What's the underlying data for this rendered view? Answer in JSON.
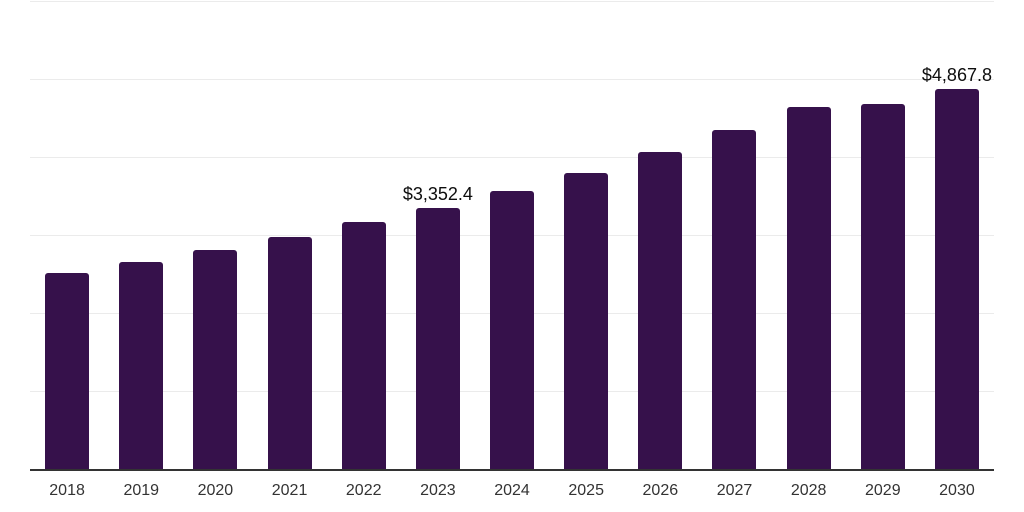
{
  "chart_data": {
    "type": "bar",
    "categories": [
      "2018",
      "2019",
      "2020",
      "2021",
      "2022",
      "2023",
      "2024",
      "2025",
      "2026",
      "2027",
      "2028",
      "2029",
      "2030"
    ],
    "values": [
      2515,
      2655,
      2805,
      2975,
      3170,
      3352.4,
      3565,
      3800,
      4060,
      4340,
      4640,
      4680,
      4867.8
    ],
    "data_labels": [
      "",
      "",
      "",
      "",
      "",
      "$3,352.4",
      "",
      "",
      "",
      "",
      "",
      "",
      "$4,867.8"
    ],
    "title": "",
    "xlabel": "",
    "ylabel": "",
    "ylim": [
      0,
      6000
    ],
    "gridlines": [
      1000,
      2000,
      3000,
      4000,
      5000,
      6000
    ],
    "grid_on": true,
    "legend": "none",
    "value_unit_prefix": "$"
  },
  "colors": {
    "bar": "#36114b",
    "axis": "#333333",
    "gridline": "#ebebeb",
    "tick_label": "#333333",
    "value_label": "#0d0d0d",
    "background": "#ffffff"
  }
}
